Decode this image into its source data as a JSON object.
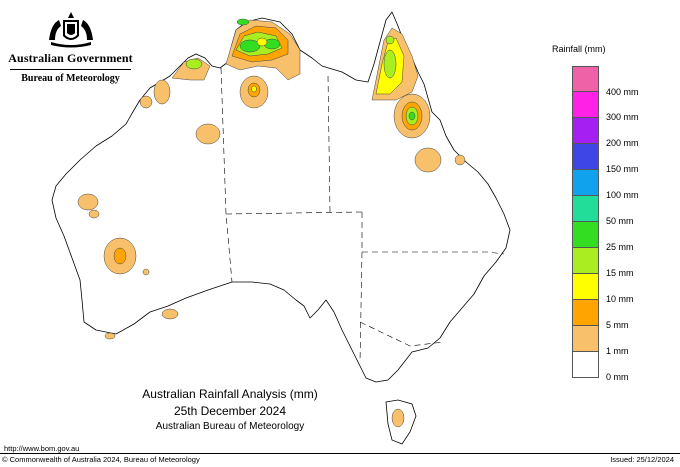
{
  "branding": {
    "government": "Australian Government",
    "bureau": "Bureau of Meteorology"
  },
  "legend": {
    "title": "Rainfall (mm)",
    "classes": [
      {
        "label": "400 mm",
        "color": "#f062a8"
      },
      {
        "label": "300 mm",
        "color": "#ff22e6"
      },
      {
        "label": "200 mm",
        "color": "#a51ef2"
      },
      {
        "label": "150 mm",
        "color": "#3e47e6"
      },
      {
        "label": "100 mm",
        "color": "#11a2ee"
      },
      {
        "label": "50 mm",
        "color": "#22dd9a"
      },
      {
        "label": "25 mm",
        "color": "#33dd22"
      },
      {
        "label": "15 mm",
        "color": "#aaee22"
      },
      {
        "label": "10 mm",
        "color": "#ffff00"
      },
      {
        "label": "5 mm",
        "color": "#ffa400"
      },
      {
        "label": "1 mm",
        "color": "#f8c06a"
      },
      {
        "label": "0 mm",
        "color": "#ffffff"
      }
    ]
  },
  "title": {
    "line1": "Australian Rainfall Analysis (mm)",
    "line2": "25th December 2024",
    "line3": "Australian Bureau of Meteorology"
  },
  "footer": {
    "url": "http://www.bom.gov.au",
    "copyright": "© Commonwealth of Australia 2024, Bureau of Meteorology",
    "issued": "Issued: 25/12/2024"
  }
}
